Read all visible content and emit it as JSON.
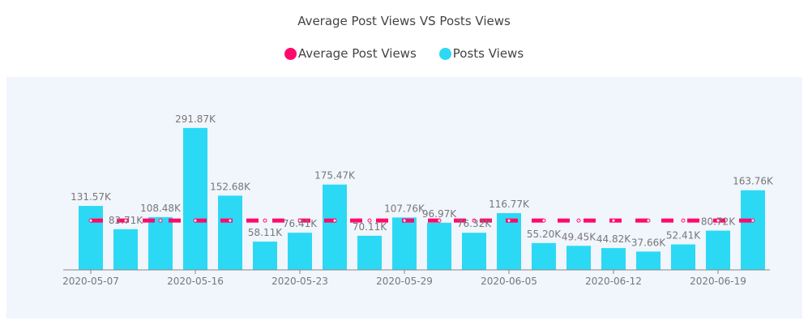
{
  "chart_data": {
    "type": "bar",
    "title": "Average Post Views VS Posts Views",
    "legend": [
      {
        "name": "Average Post Views",
        "color": "#ff0a6c"
      },
      {
        "name": "Posts Views",
        "color": "#2cd9f4"
      }
    ],
    "legend_position": "top-center",
    "x_tick_labels": [
      "2020-05-07",
      "",
      "",
      "2020-05-16",
      "",
      "",
      "2020-05-23",
      "",
      "",
      "2020-05-29",
      "",
      "",
      "2020-06-05",
      "",
      "",
      "2020-06-12",
      "",
      "",
      "2020-06-19",
      ""
    ],
    "series": [
      {
        "name": "Posts Views",
        "type": "bar",
        "values": [
          131.57,
          83.71,
          108.48,
          291.87,
          152.68,
          58.11,
          76.41,
          175.47,
          70.11,
          107.76,
          96.97,
          76.32,
          116.77,
          55.2,
          49.45,
          44.82,
          37.66,
          52.41,
          80.72,
          163.76
        ],
        "labels": [
          "131.57K",
          "83.71K",
          "108.48K",
          "291.87K",
          "152.68K",
          "58.11K",
          "76.41K",
          "175.47K",
          "70.11K",
          "107.76K",
          "96.97K",
          "76.32K",
          "116.77K",
          "55.20K",
          "49.45K",
          "44.82K",
          "37.66K",
          "52.41K",
          "80.72K",
          "163.76K"
        ]
      },
      {
        "name": "Average Post Views",
        "type": "line",
        "style": "dashed",
        "value": 101.51
      }
    ],
    "unit": "K",
    "ylim": [
      0,
      300
    ],
    "grid": false
  }
}
